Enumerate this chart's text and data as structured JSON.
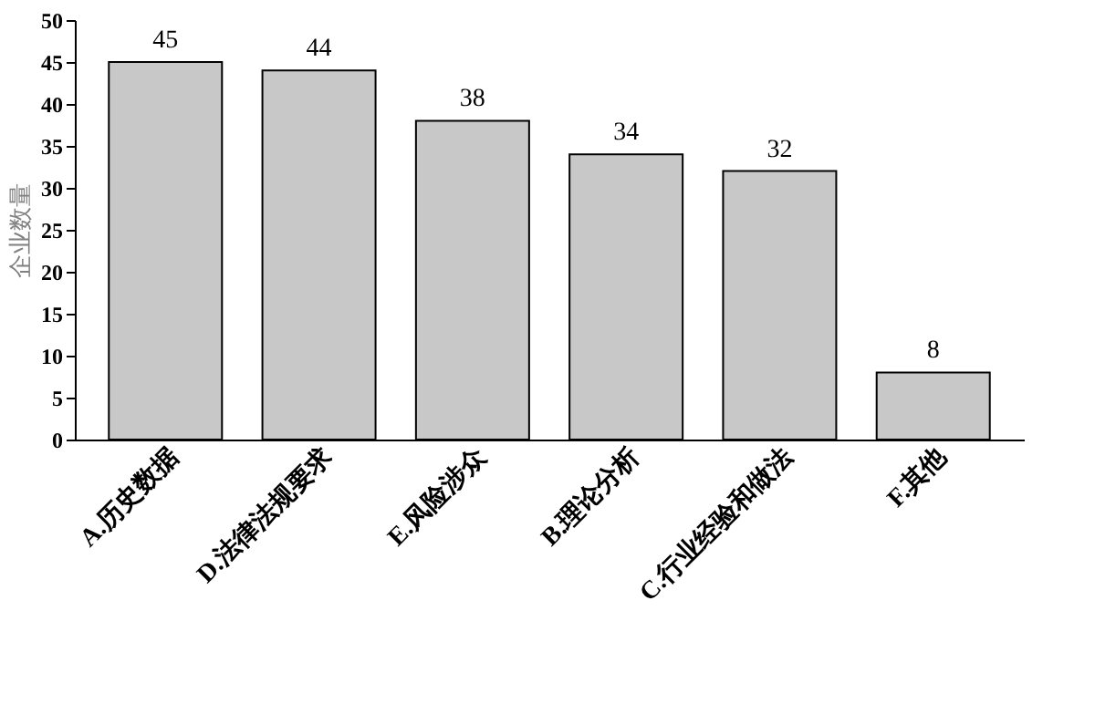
{
  "chart_data": {
    "type": "bar",
    "ylabel": "企业数量",
    "categories": [
      "A.历史数据",
      "D.法律法规要求",
      "E.风险涉众",
      "B.理论分析",
      "C.行业经验和做法",
      "F.其他"
    ],
    "values": [
      45,
      44,
      38,
      34,
      32,
      8
    ],
    "color": "#c8c8c8",
    "ylim": [
      0,
      50
    ],
    "yticks": [
      0,
      5,
      10,
      15,
      20,
      25,
      30,
      35,
      40,
      45,
      50
    ],
    "grid": false,
    "data_labels": true
  }
}
